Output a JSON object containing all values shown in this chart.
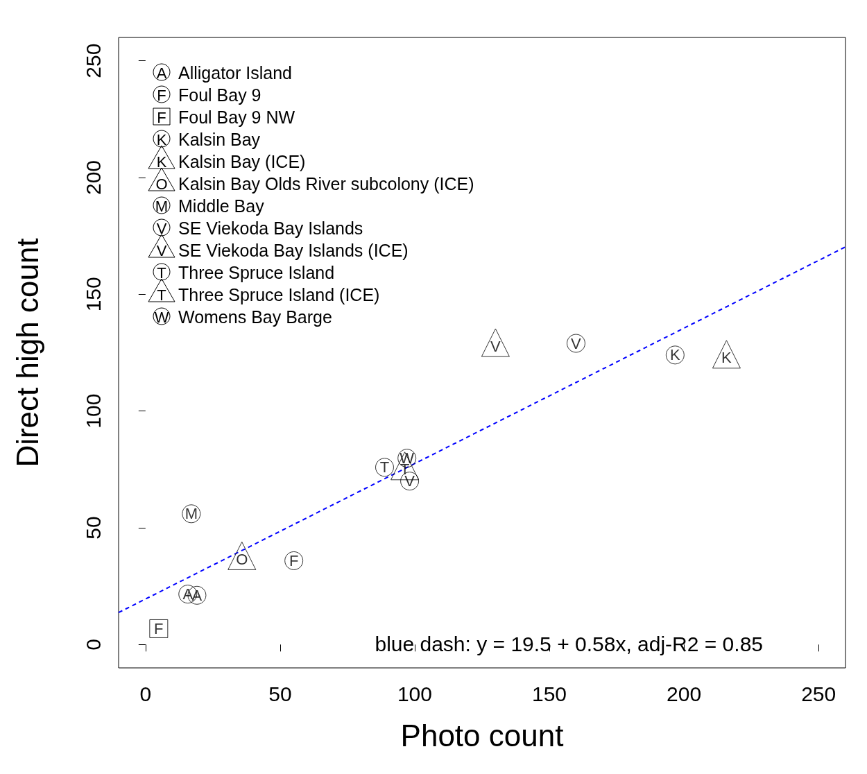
{
  "chart_data": {
    "type": "scatter",
    "xlabel": "Photo count",
    "ylabel": "Direct high count",
    "xlim": [
      -10,
      260
    ],
    "ylim": [
      -10,
      260
    ],
    "xticks": [
      0,
      50,
      100,
      150,
      200,
      250
    ],
    "yticks": [
      0,
      50,
      100,
      150,
      200,
      250
    ],
    "grid": false,
    "legend": "top left",
    "annotations": [
      "blue dash: y = 19.5 + 0.58x, adj-R2 = 0.85"
    ],
    "series": [
      {
        "name": "Alligator Island",
        "color": "#000000",
        "marker": "circle",
        "x": [
          15.7,
          19.1
        ],
        "values": [
          21.6,
          21.1
        ],
        "value_labels": [
          "A",
          "A"
        ]
      },
      {
        "name": "Foul Bay 9",
        "color": "#000000",
        "marker": "circle",
        "x": [
          55.1
        ],
        "values": [
          35.9
        ],
        "value_labels": [
          "F"
        ]
      },
      {
        "name": "Foul Bay 9 NW",
        "color": "#000000",
        "marker": "square",
        "x": [
          4.9
        ],
        "values": [
          6.8
        ],
        "value_labels": [
          "F"
        ]
      },
      {
        "name": "Kalsin Bay",
        "color": "#000000",
        "marker": "circle",
        "x": [
          196.7
        ],
        "values": [
          124
        ],
        "value_labels": [
          "K"
        ]
      },
      {
        "name": "Kalsin Bay (ICE)",
        "color": "#000000",
        "marker": "triangle",
        "x": [
          215.8
        ],
        "values": [
          124.3
        ],
        "value_labels": [
          "K"
        ]
      },
      {
        "name": "Kalsin Bay Olds River subcolony (ICE)",
        "color": "#000000",
        "marker": "triangle",
        "x": [
          35.8
        ],
        "values": [
          38
        ],
        "value_labels": [
          "O"
        ]
      },
      {
        "name": "Middle Bay",
        "color": "#000000",
        "marker": "circle",
        "x": [
          17
        ],
        "values": [
          56
        ],
        "value_labels": [
          "M"
        ]
      },
      {
        "name": "SE Viekoda Bay Islands",
        "color": "#000000",
        "marker": "circle",
        "x": [
          159.9,
          98.1
        ],
        "values": [
          129,
          70
        ],
        "value_labels": [
          "V",
          "V"
        ]
      },
      {
        "name": "SE Viekoda Bay Islands (ICE)",
        "color": "#000000",
        "marker": "triangle",
        "x": [
          130
        ],
        "values": [
          129.3
        ],
        "value_labels": [
          "V"
        ]
      },
      {
        "name": "Three Spruce Island",
        "color": "#000000",
        "marker": "circle",
        "x": [
          88.8
        ],
        "values": [
          75.9
        ],
        "value_labels": [
          "T"
        ]
      },
      {
        "name": "Three Spruce Island (ICE)",
        "color": "#000000",
        "marker": "triangle",
        "x": [
          96.3
        ],
        "values": [
          76.5
        ],
        "value_labels": [
          "T"
        ]
      },
      {
        "name": "Womens Bay Barge",
        "color": "#000000",
        "marker": "circle",
        "x": [
          97.1
        ],
        "values": [
          79.8
        ],
        "value_labels": [
          "W"
        ]
      },
      {
        "type": "line",
        "color": "#0000ff",
        "marker": "none",
        "line_style": "dashed",
        "x": [
          -10,
          260
        ],
        "values": [
          13.7,
          170.3
        ]
      }
    ]
  }
}
